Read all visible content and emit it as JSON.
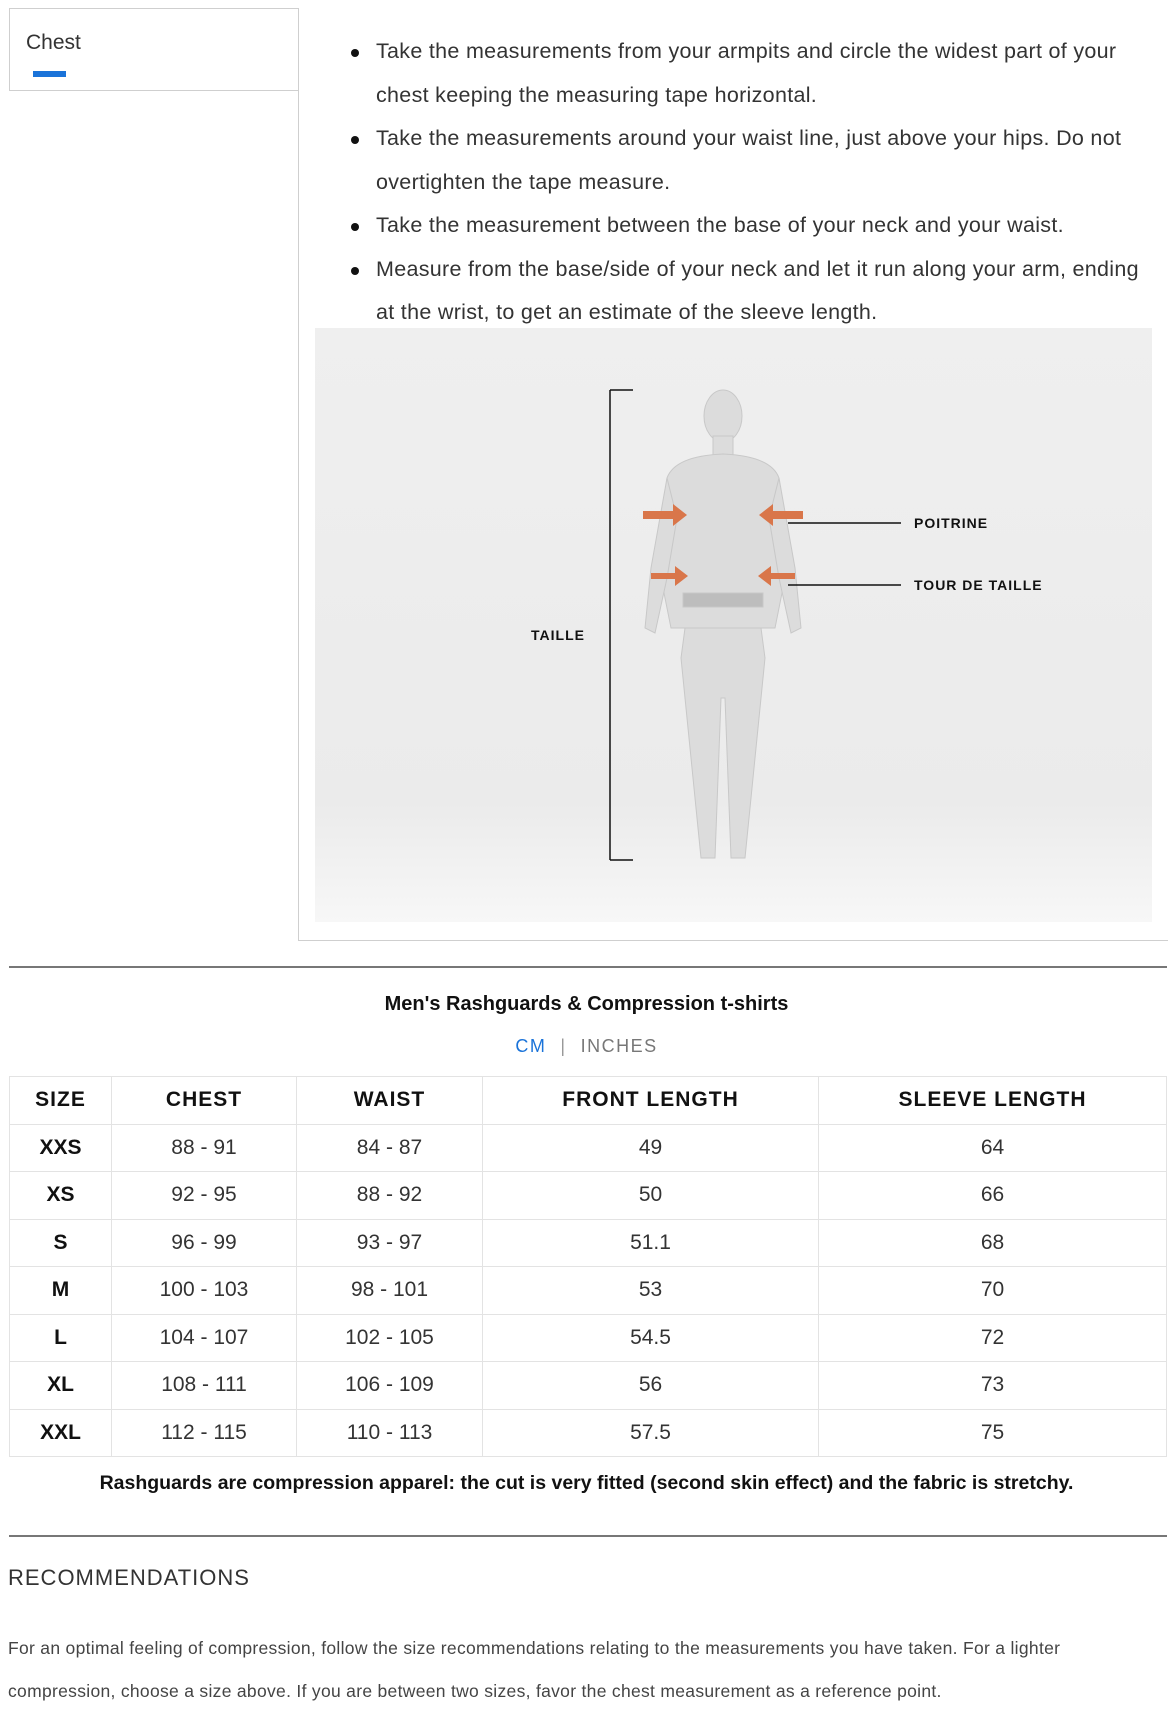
{
  "tabs": [
    {
      "label": "Chest",
      "active": true
    }
  ],
  "accent_color": "#1a73d9",
  "instructions": [
    "Take the measurements from your armpits and circle the widest part of your chest keeping the measuring tape horizontal.",
    "Take the measurements around your waist line, just above your hips. Do not overtighten the tape measure.",
    "Take the measurement between the base of your neck and your waist.",
    "Measure from the base/side of your neck and let it run along your arm, ending at the wrist, to get an estimate of the sleeve length."
  ],
  "figure": {
    "labels": {
      "height": "TAILLE",
      "chest": "POITRINE",
      "waist": "TOUR DE TAILLE"
    },
    "arrow_color": "#d9764a"
  },
  "size_chart": {
    "title": "Men's Rashguards & Compression t-shirts",
    "units": {
      "active": "CM",
      "other": "INCHES"
    },
    "headers": [
      "SIZE",
      "CHEST",
      "WAIST",
      "FRONT LENGTH",
      "SLEEVE LENGTH"
    ],
    "rows": [
      [
        "XXS",
        "88 - 91",
        "84 - 87",
        "49",
        "64"
      ],
      [
        "XS",
        "92 - 95",
        "88 - 92",
        "50",
        "66"
      ],
      [
        "S",
        "96 - 99",
        "93 - 97",
        "51.1",
        "68"
      ],
      [
        "M",
        "100 - 103",
        "98 - 101",
        "53",
        "70"
      ],
      [
        "L",
        "104 - 107",
        "102 - 105",
        "54.5",
        "72"
      ],
      [
        "XL",
        "108 - 111",
        "106 - 109",
        "56",
        "73"
      ],
      [
        "XXL",
        "112 - 115",
        "110 - 113",
        "57.5",
        "75"
      ]
    ],
    "note": "Rashguards are compression apparel: the cut is very fitted (second skin effect) and the fabric is stretchy."
  },
  "recommendations": {
    "title": "RECOMMENDATIONS",
    "text": "For an optimal feeling of compression, follow the size recommendations relating to the measurements you have taken. For a lighter compression, choose a size above. If you are between two sizes, favor the chest measurement as a reference point."
  }
}
